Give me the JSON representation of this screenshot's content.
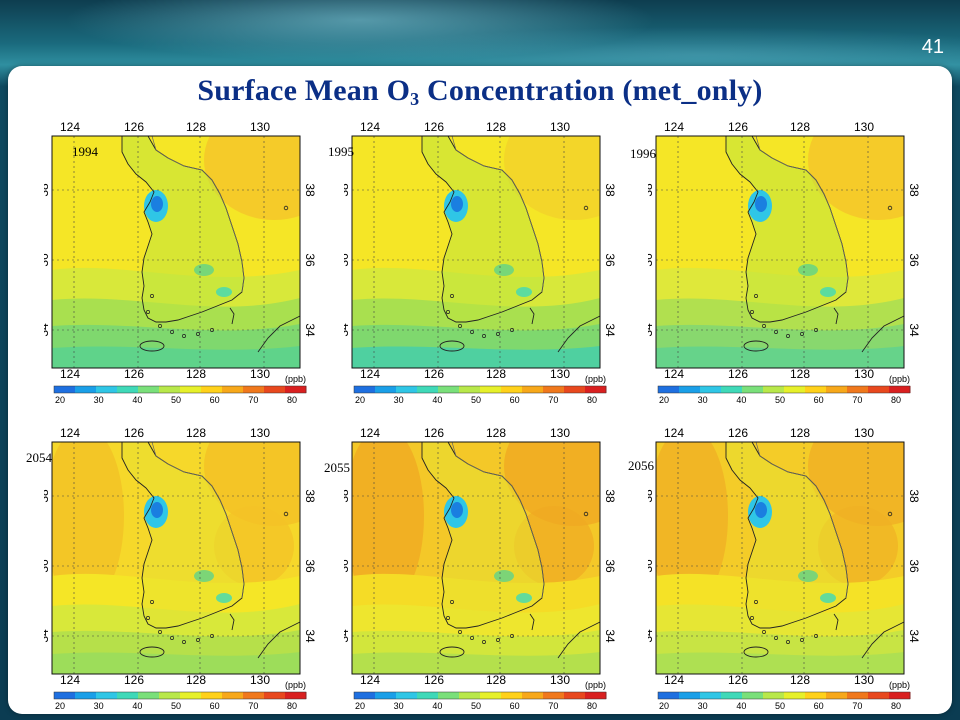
{
  "slide": {
    "number": "41",
    "title_main": "Surface Mean O",
    "title_sub": "3",
    "title_rest": " Concentration  (met_only)"
  },
  "maps": [
    {
      "year": "1994",
      "row": 0,
      "col": 0,
      "scheme": "present"
    },
    {
      "year": "1995",
      "row": 0,
      "col": 1,
      "scheme": "present2"
    },
    {
      "year": "1996",
      "row": 0,
      "col": 2,
      "scheme": "present3"
    },
    {
      "year": "2054",
      "row": 1,
      "col": 0,
      "scheme": "future"
    },
    {
      "year": "2055",
      "row": 1,
      "col": 1,
      "scheme": "future2"
    },
    {
      "year": "2056",
      "row": 1,
      "col": 2,
      "scheme": "future3"
    }
  ],
  "axes": {
    "lon_ticks": [
      "124",
      "126",
      "128",
      "130"
    ],
    "lat_ticks": [
      "34",
      "36",
      "38"
    ]
  },
  "colorbar": {
    "unit": "(ppb)",
    "ticks": [
      "20",
      "30",
      "40",
      "50",
      "60",
      "70",
      "80"
    ],
    "colors": [
      "#1e6fe0",
      "#1a9fe8",
      "#2fc6e6",
      "#3fd9b8",
      "#7ae07a",
      "#b8e84a",
      "#e6f02a",
      "#ffd11a",
      "#f7a81a",
      "#f0781c",
      "#e8481e",
      "#d92020"
    ]
  }
}
